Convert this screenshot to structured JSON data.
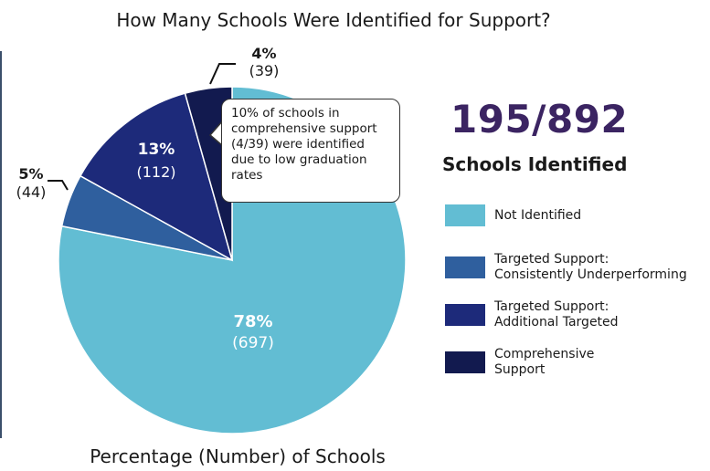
{
  "title": "How Many Schools Were Identified for Support?",
  "caption": "Percentage (Number) of Schools",
  "summary": {
    "big": "195/892",
    "sub": "Schools Identified"
  },
  "callout": "10% of schools in comprehensive support (4/39) were identified due to low graduation rates",
  "chart_data": {
    "type": "pie",
    "title": "How Many Schools Were Identified for Support?",
    "xlabel": "Percentage (Number) of Schools",
    "slices": [
      {
        "name": "Not Identified",
        "value": 697,
        "percent_label": "78%",
        "count_label": "(697)",
        "color": "#62bdd3"
      },
      {
        "name": "Targeted Support: Consistently Underperforming",
        "value": 44,
        "percent_label": "5%",
        "count_label": "(44)",
        "color": "#2f5f9e"
      },
      {
        "name": "Targeted Support: Additional Targeted",
        "value": 112,
        "percent_label": "13%",
        "count_label": "(112)",
        "color": "#1d2a7a"
      },
      {
        "name": "Comprehensive Support",
        "value": 39,
        "percent_label": "4%",
        "count_label": "(39)",
        "color": "#121a4f"
      }
    ],
    "legend_position": "right"
  }
}
